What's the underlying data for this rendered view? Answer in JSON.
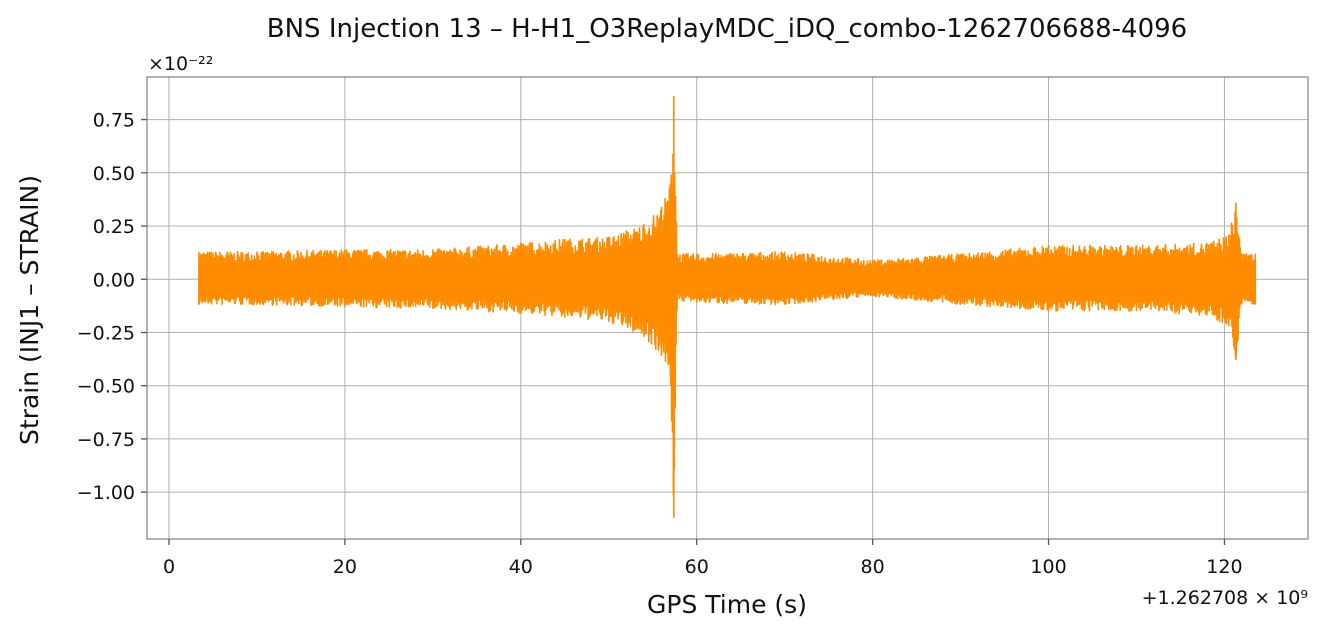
{
  "chart_data": {
    "type": "line",
    "title": "BNS Injection 13 – H-H1_O3ReplayMDC_iDQ_combo-1262706688-4096",
    "xlabel": "GPS Time (s)",
    "ylabel": "Strain (INJ1 – STRAIN)",
    "x_offset_label": "+1.262708 × 10⁹",
    "y_scale_label": "×10⁻²²",
    "xlim": [
      -2.5,
      129.5
    ],
    "ylim": [
      -1.22,
      0.95
    ],
    "x_ticks": [
      0,
      20,
      40,
      60,
      80,
      100,
      120
    ],
    "x_tick_labels": [
      "0",
      "20",
      "40",
      "60",
      "80",
      "100",
      "120"
    ],
    "y_ticks": [
      0.75,
      0.5,
      0.25,
      0.0,
      -0.25,
      -0.5,
      -0.75,
      -1.0
    ],
    "y_tick_labels": [
      "0.75",
      "0.50",
      "0.25",
      "0.00",
      "−0.25",
      "−0.50",
      "−0.75",
      "−1.00"
    ],
    "grid": true,
    "series": [
      {
        "color": "#ff8c00",
        "x_range": [
          3.4,
          123.5
        ],
        "envelope": [
          {
            "x": 3.4,
            "upper": 0.13,
            "lower": -0.12
          },
          {
            "x": 10,
            "upper": 0.13,
            "lower": -0.12
          },
          {
            "x": 20,
            "upper": 0.14,
            "lower": -0.13
          },
          {
            "x": 30,
            "upper": 0.14,
            "lower": -0.14
          },
          {
            "x": 40,
            "upper": 0.17,
            "lower": -0.16
          },
          {
            "x": 45,
            "upper": 0.19,
            "lower": -0.18
          },
          {
            "x": 50,
            "upper": 0.2,
            "lower": -0.2
          },
          {
            "x": 54,
            "upper": 0.26,
            "lower": -0.27
          },
          {
            "x": 56,
            "upper": 0.34,
            "lower": -0.36
          },
          {
            "x": 57,
            "upper": 0.45,
            "lower": -0.45
          },
          {
            "x": 57.4,
            "upper": 0.86,
            "lower": -1.12
          },
          {
            "x": 57.8,
            "upper": 0.12,
            "lower": -0.1
          },
          {
            "x": 60,
            "upper": 0.12,
            "lower": -0.11
          },
          {
            "x": 70,
            "upper": 0.13,
            "lower": -0.12
          },
          {
            "x": 80,
            "upper": 0.09,
            "lower": -0.08
          },
          {
            "x": 90,
            "upper": 0.12,
            "lower": -0.12
          },
          {
            "x": 100,
            "upper": 0.16,
            "lower": -0.15
          },
          {
            "x": 110,
            "upper": 0.16,
            "lower": -0.15
          },
          {
            "x": 118,
            "upper": 0.17,
            "lower": -0.17
          },
          {
            "x": 120.5,
            "upper": 0.21,
            "lower": -0.22
          },
          {
            "x": 121.3,
            "upper": 0.36,
            "lower": -0.38
          },
          {
            "x": 122,
            "upper": 0.12,
            "lower": -0.11
          },
          {
            "x": 123.5,
            "upper": 0.12,
            "lower": -0.12
          }
        ]
      }
    ]
  }
}
